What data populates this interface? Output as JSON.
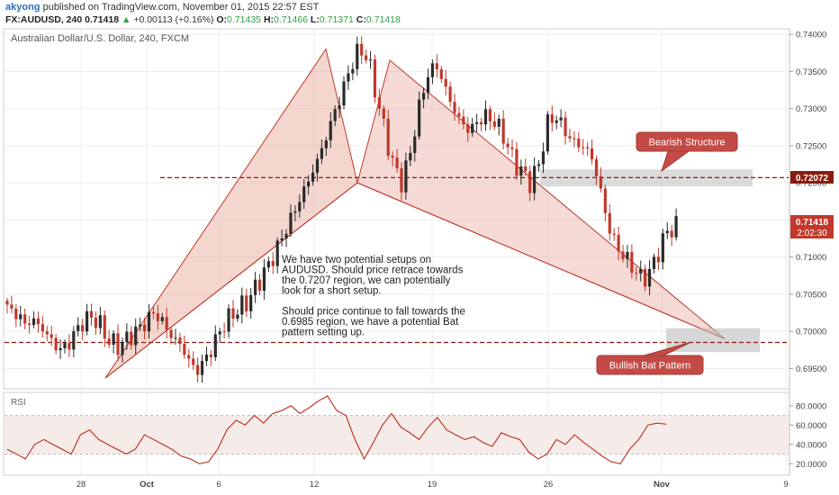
{
  "header": {
    "author": "akyong",
    "published_text": "published on TradingView.com, November 01, 2015 22:57 EST",
    "symbol": "FX:AUDUSD, 240",
    "last": "0.71418",
    "change": "+0.00113 (+0.16%)",
    "open_label": "O:",
    "open": "0.71435",
    "high_label": "H:",
    "high": "0.71466",
    "low_label": "L:",
    "low": "0.71371",
    "close_label": "C:",
    "close": "0.71418"
  },
  "chart_data": {
    "type": "candlestick",
    "title": "Australian Dollar/U.S. Dollar, 240, FXCM",
    "x_tick_labels": [
      "28",
      "Oct",
      "6",
      "12",
      "19",
      "26",
      "Nov",
      "9"
    ],
    "ylim": [
      0.6925,
      0.7405
    ],
    "y_tick_labels": [
      "0.74000",
      "0.73500",
      "0.73000",
      "0.72500",
      "0.72000",
      "0.71500",
      "0.71000",
      "0.70500",
      "0.70000",
      "0.69500"
    ],
    "price_labels": {
      "level": "0.72072",
      "last": "0.71418",
      "countdown": "2:02:30"
    },
    "anchor_prices": [
      0.703,
      0.7025,
      0.701,
      0.7015,
      0.7005,
      0.699,
      0.6975,
      0.698,
      0.7,
      0.7015,
      0.702,
      0.7005,
      0.6985,
      0.698,
      0.699,
      0.7,
      0.701,
      0.7025,
      0.7015,
      0.6995,
      0.6985,
      0.6965,
      0.6945,
      0.696,
      0.698,
      0.7005,
      0.702,
      0.703,
      0.704,
      0.706,
      0.708,
      0.71,
      0.7125,
      0.715,
      0.7175,
      0.72,
      0.7225,
      0.7255,
      0.729,
      0.732,
      0.7355,
      0.738,
      0.737,
      0.732,
      0.727,
      0.7225,
      0.72,
      0.724,
      0.73,
      0.7345,
      0.736,
      0.733,
      0.73,
      0.728,
      0.727,
      0.7285,
      0.729,
      0.728,
      0.726,
      0.723,
      0.7215,
      0.72,
      0.7225,
      0.728,
      0.729,
      0.727,
      0.7255,
      0.725,
      0.724,
      0.72,
      0.7145,
      0.7115,
      0.71,
      0.7085,
      0.707,
      0.708,
      0.711,
      0.7135,
      0.7142
    ],
    "levels": [
      0.7207,
      0.6985
    ],
    "pattern_points": {
      "X": 0.6937,
      "A": 0.738,
      "B": 0.72,
      "C": 0.7365,
      "D": 0.699
    },
    "rsi": {
      "label": "RSI",
      "y_tick_labels": [
        "80.0000",
        "60.0000",
        "40.0000",
        "20.0000"
      ],
      "ylim": [
        10,
        92
      ],
      "levels": [
        70,
        30
      ],
      "anchor_values": [
        35,
        30,
        25,
        40,
        45,
        40,
        35,
        30,
        50,
        55,
        45,
        40,
        35,
        30,
        35,
        50,
        45,
        40,
        35,
        28,
        25,
        20,
        22,
        35,
        55,
        65,
        60,
        70,
        62,
        72,
        75,
        80,
        72,
        78,
        85,
        90,
        75,
        70,
        45,
        25,
        42,
        60,
        72,
        58,
        52,
        45,
        58,
        68,
        55,
        50,
        45,
        48,
        42,
        38,
        52,
        48,
        45,
        32,
        25,
        30,
        45,
        40,
        50,
        42,
        35,
        28,
        22,
        20,
        35,
        45,
        60,
        62,
        61
      ],
      "last_value": 61
    }
  },
  "annotations": {
    "text_lines": [
      "We have two potential setups on",
      "AUDUSD. Should price retrace towards",
      "the 0.7207 region, we can potentially",
      "look for a short setup.",
      "",
      "Should price continue to fall towards the",
      "0.6985 region, we have a potential Bat",
      "pattern setting up."
    ],
    "callout_bearish": "Bearish Structure",
    "callout_bullish": "Bullish Bat Pattern"
  },
  "colors": {
    "up": "#2b2b2b",
    "down": "#c0392b",
    "pattern_fill": "#e6a395",
    "pattern_line": "#c0392b",
    "level_line": "#8b1c0f",
    "callout_fill": "#c44a45",
    "rsi_line": "#c0392b",
    "background": "#ffffff",
    "chart_bg": "#fdfbf9"
  }
}
